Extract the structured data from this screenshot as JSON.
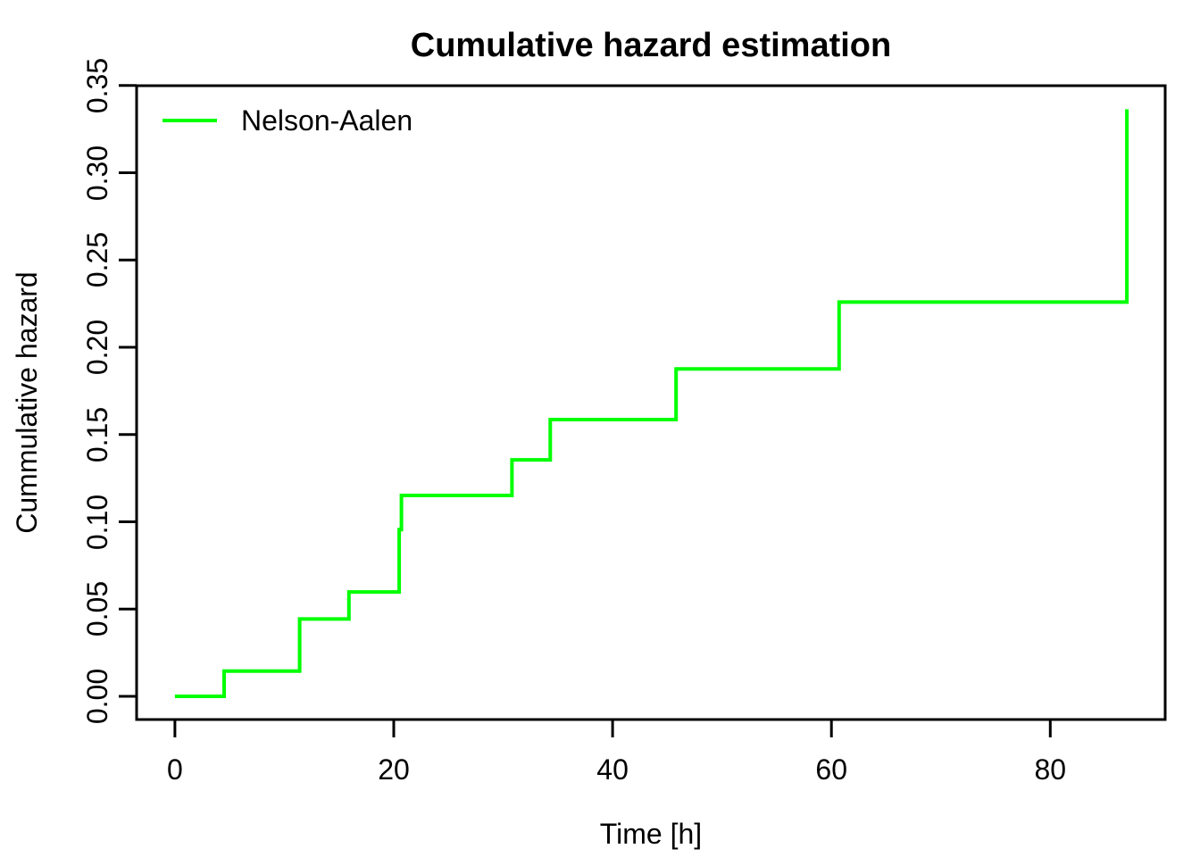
{
  "figure": {
    "title": "Cumulative hazard estimation",
    "x_axis_label": "Time [h]",
    "y_axis_label": "Cummulative hazard",
    "legend": {
      "label": "Nelson-Aalen",
      "position": "top-left"
    }
  },
  "chart_data": {
    "type": "line",
    "step": "post",
    "title": "Cumulative hazard estimation",
    "xlabel": "Time [h]",
    "ylabel": "Cummulative hazard",
    "xlim": [
      -3.5,
      90.5
    ],
    "ylim": [
      -0.0133,
      0.3499
    ],
    "x_ticks": [
      0,
      20,
      40,
      60,
      80
    ],
    "x_tick_labels": [
      "0",
      "20",
      "40",
      "60",
      "80"
    ],
    "y_ticks": [
      0.0,
      0.05,
      0.1,
      0.15,
      0.2,
      0.25,
      0.3,
      0.35
    ],
    "y_tick_labels": [
      "0.00",
      "0.05",
      "0.10",
      "0.15",
      "0.20",
      "0.25",
      "0.30",
      "0.35"
    ],
    "grid": false,
    "legend_position": "top-left",
    "series": [
      {
        "name": "Nelson-Aalen",
        "color": "#00FF00",
        "points": [
          [
            0.0,
            0.0
          ],
          [
            4.5,
            0.0145
          ],
          [
            11.4,
            0.0443
          ],
          [
            15.9,
            0.0598
          ],
          [
            20.5,
            0.0955
          ],
          [
            20.7,
            0.1151
          ],
          [
            30.8,
            0.1355
          ],
          [
            34.3,
            0.1586
          ],
          [
            45.8,
            0.1876
          ],
          [
            60.7,
            0.2259
          ],
          [
            87.0,
            0.3364
          ]
        ]
      }
    ]
  },
  "colors": {
    "curve": "#00FF00",
    "axis": "#000000",
    "text": "#000000",
    "background": "#FFFFFF"
  }
}
